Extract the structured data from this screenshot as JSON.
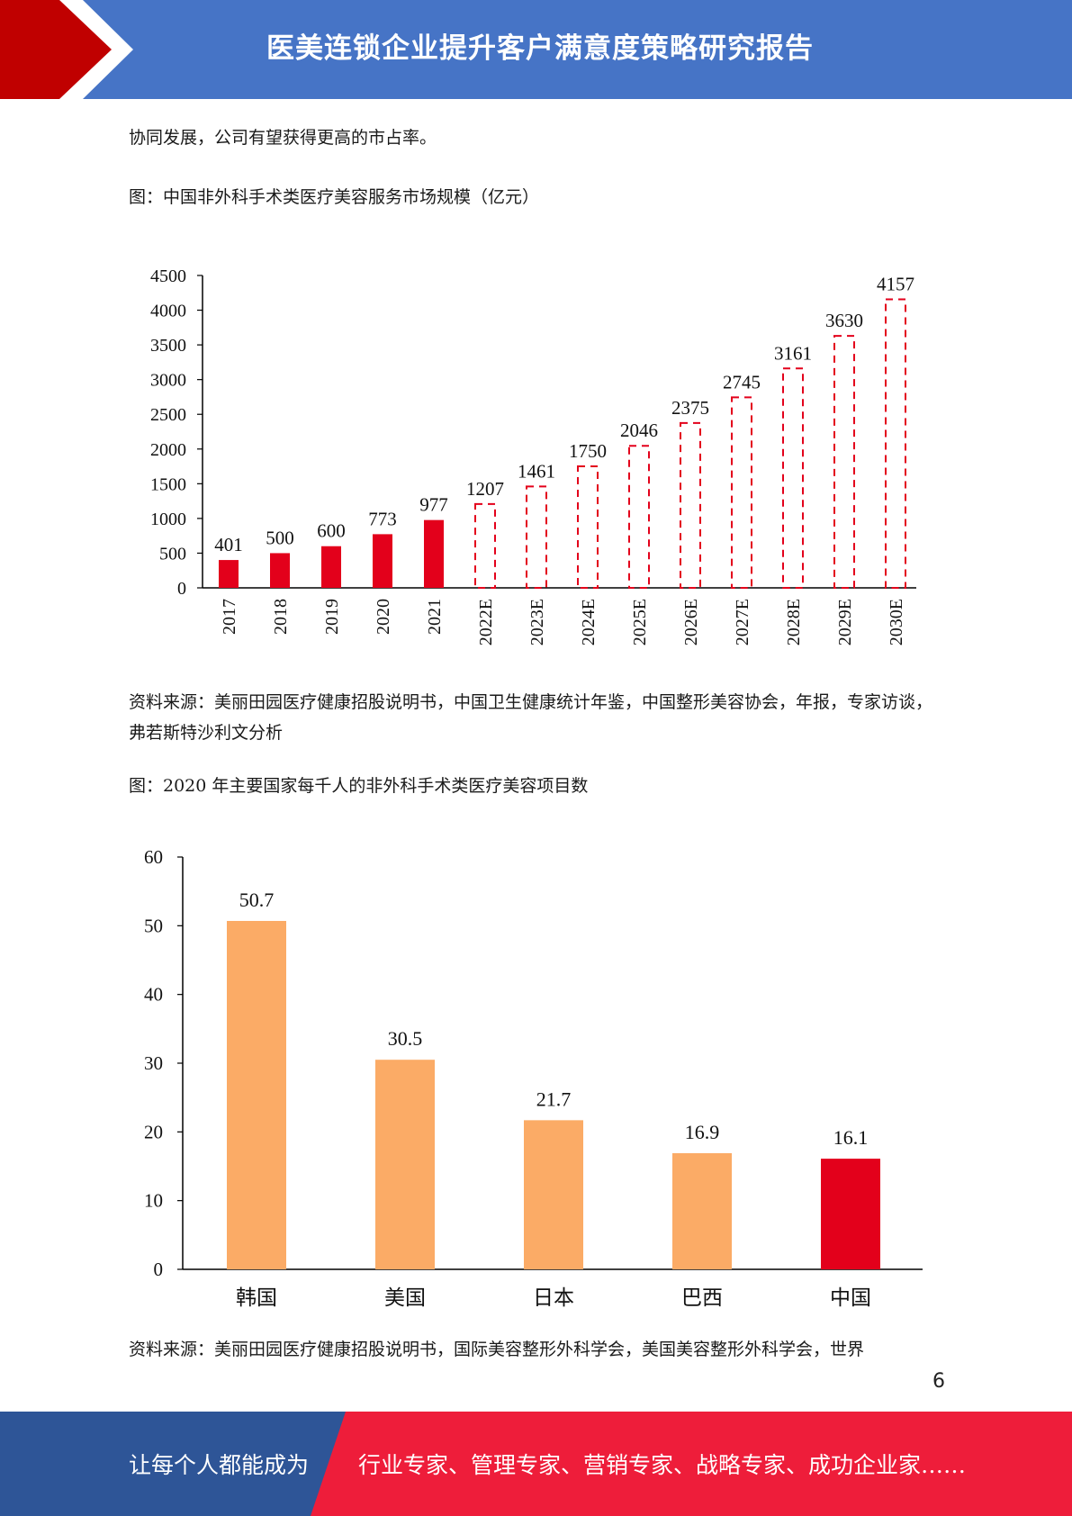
{
  "header": {
    "title": "医美连锁企业提升客户满意度策略研究报告",
    "colors": {
      "band": "#4674c6",
      "arrow": "#c00000"
    }
  },
  "body": {
    "intro_line": "协同发展，公司有望获得更高的市占率。",
    "figure1_caption": "图：中国非外科手术类医疗美容服务市场规模（亿元）",
    "figure1_source": "资料来源：美丽田园医疗健康招股说明书，中国卫生健康统计年鉴，中国整形美容协会，年报，专家访谈，弗若斯特沙利文分析",
    "figure2_caption": "图：2020 年主要国家每千人的非外科手术类医疗美容项目数",
    "figure2_source": "资料来源：美丽田园医疗健康招股说明书，国际美容整形外科学会，美国美容整形外科学会，世界"
  },
  "chart_data": [
    {
      "type": "bar",
      "categories": [
        "2017",
        "2018",
        "2019",
        "2020",
        "2021",
        "2022E",
        "2023E",
        "2024E",
        "2025E",
        "2026E",
        "2027E",
        "2028E",
        "2029E",
        "2030E"
      ],
      "values": [
        401,
        500,
        600,
        773,
        977,
        1207,
        1461,
        1750,
        2046,
        2375,
        2745,
        3161,
        3630,
        4157
      ],
      "forecast_from_index": 5,
      "yticks": [
        0,
        500,
        1000,
        1500,
        2000,
        2500,
        3000,
        3500,
        4000,
        4500
      ],
      "ylim": [
        0,
        4500
      ],
      "colors": {
        "actual": "#e3001b",
        "forecast_outline": "#e3001b"
      },
      "grid": false,
      "legend": "none"
    },
    {
      "type": "bar",
      "categories": [
        "韩国",
        "美国",
        "日本",
        "巴西",
        "中国"
      ],
      "values": [
        50.7,
        30.5,
        21.7,
        16.9,
        16.1
      ],
      "value_labels": [
        "50.7",
        "30.5",
        "21.7",
        "16.9",
        "16.1"
      ],
      "yticks": [
        0,
        10,
        20,
        30,
        40,
        50,
        60
      ],
      "ylim": [
        0,
        60
      ],
      "colors": {
        "default": "#fbab66",
        "highlight": "#e3001b",
        "highlight_category": "中国"
      },
      "grid": false,
      "legend": "none"
    }
  ],
  "page_number": "6",
  "footer": {
    "left_text": "让每个人都能成为",
    "right_text": "行业专家、管理专家、营销专家、战略专家、成功企业家……",
    "colors": {
      "left": "#2e5597",
      "right": "#ee1d3a"
    }
  }
}
